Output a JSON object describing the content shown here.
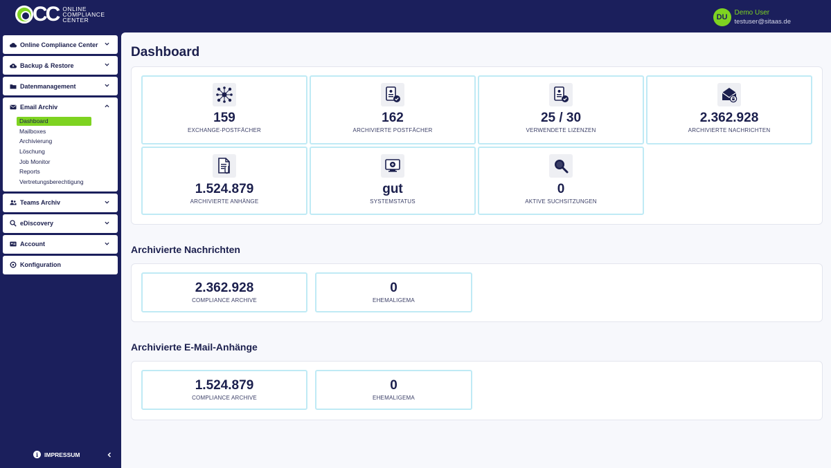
{
  "header": {
    "logo_text_lines": [
      "ONLINE",
      "COMPLIANCE",
      "CENTER"
    ],
    "user": {
      "initials": "DU",
      "name": "Demo User",
      "email": "testuser@sitaas.de"
    }
  },
  "sidebar": {
    "groups": [
      {
        "label": "Online Compliance Center",
        "icon": "cloud-icon"
      },
      {
        "label": "Backup & Restore",
        "icon": "cloud-upload-icon"
      },
      {
        "label": "Datenmanagement",
        "icon": "folder-icon"
      },
      {
        "label": "Email Archiv",
        "icon": "envelope-icon",
        "items": [
          "Dashboard",
          "Mailboxes",
          "Archivierung",
          "Löschung",
          "Job Monitor",
          "Reports",
          "Vertretungsberechtigung"
        ],
        "active": "Dashboard"
      },
      {
        "label": "Teams Archiv",
        "icon": "users-icon"
      },
      {
        "label": "eDiscovery",
        "icon": "search-icon"
      },
      {
        "label": "Account",
        "icon": "id-card-icon"
      },
      {
        "label": "Konfiguration",
        "icon": "settings-icon"
      }
    ],
    "footer_label": "IMPRESSUM"
  },
  "main": {
    "title": "Dashboard",
    "stats": [
      {
        "value": "159",
        "label": "EXCHANGE-POSTFÄCHER",
        "icon": "network-icon"
      },
      {
        "value": "162",
        "label": "ARCHIVIERTE POSTFÄCHER",
        "icon": "archived-mailbox-icon"
      },
      {
        "value": "25 / 30",
        "label": "VERWENDETE LIZENZEN",
        "icon": "license-icon"
      },
      {
        "value": "2.362.928",
        "label": "ARCHIVIERTE NACHRICHTEN",
        "icon": "secure-mail-icon"
      },
      {
        "value": "1.524.879",
        "label": "ARCHIVIERTE ANHÄNGE",
        "icon": "attachment-icon"
      },
      {
        "value": "gut",
        "label": "SYSTEMSTATUS",
        "icon": "monitor-icon"
      },
      {
        "value": "0",
        "label": "AKTIVE SUCHSITZUNGEN",
        "icon": "magnifier-icon"
      }
    ],
    "messages_section": {
      "title": "Archivierte Nachrichten",
      "cards": [
        {
          "value": "2.362.928",
          "label": "COMPLIANCE ARCHIVE"
        },
        {
          "value": "0",
          "label": "EHEMALIGEMA"
        }
      ]
    },
    "attachments_section": {
      "title": "Archivierte E-Mail-Anhänge",
      "cards": [
        {
          "value": "1.524.879",
          "label": "COMPLIANCE ARCHIVE"
        },
        {
          "value": "0",
          "label": "EHEMALIGEMA"
        }
      ]
    }
  },
  "colors": {
    "navy": "#1b1f5c",
    "accent_green": "#7ed321",
    "card_border": "#bfeaf5",
    "background": "#f7f8fc"
  }
}
